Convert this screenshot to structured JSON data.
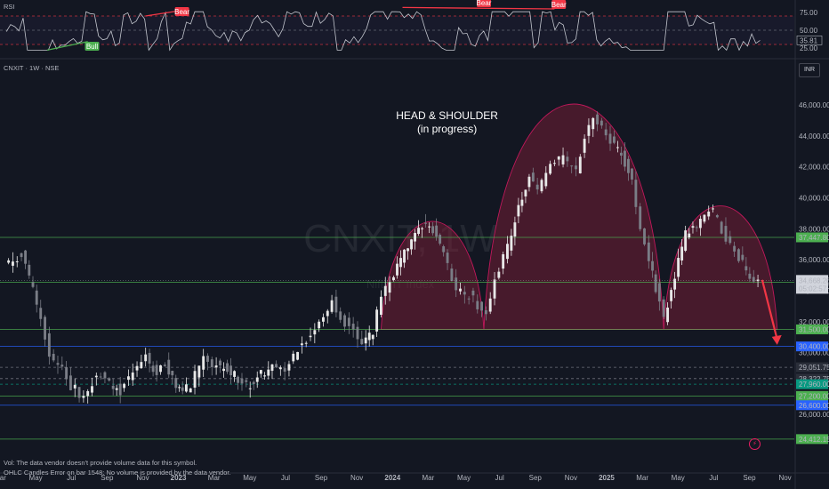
{
  "header": {
    "rsi_label": "RSI",
    "rsi_value": "35.81",
    "symbol_line": "CNXIT · 1W · NSE",
    "currency": "INR",
    "watermark_symbol": "CNXIT, 1W",
    "watermark_name": "Nifty IT Index"
  },
  "annotation": {
    "title": "HEAD & SHOULDER",
    "subtitle": "(in progress)"
  },
  "signals": [
    {
      "name": "bull-badge",
      "label": "Bull",
      "color": "#4caf50"
    },
    {
      "name": "bear-badge-1",
      "label": "Bear",
      "color": "#f23645"
    },
    {
      "name": "bear-badge-2",
      "label": "Bear",
      "color": "#f23645"
    },
    {
      "name": "bear-badge-3",
      "label": "Bear",
      "color": "#f23645"
    }
  ],
  "footer": {
    "line1": "Vol: The data vendor doesn't provide volume data for this symbol.",
    "line2": "OHLC Candles Error on bar 1548: No volume is provided by the data vendor."
  },
  "chart_data": [
    {
      "type": "line",
      "title": "RSI",
      "y_ticks": [
        "75.00",
        "50.00",
        "25.00"
      ],
      "ylim": [
        15,
        85
      ],
      "current_value": 35.81,
      "levels": [
        70,
        50,
        30
      ],
      "x_range": [
        2022.14,
        2025.85
      ]
    },
    {
      "type": "candlestick",
      "title": "CNXIT · 1W · NSE",
      "ylim": [
        23600,
        47500
      ],
      "y_ticks": [
        "46,000.00",
        "44,000.00",
        "42,000.00",
        "40,000.00",
        "38,000.00",
        "36,000.00",
        "34,000.00",
        "32,000.00",
        "30,000.00",
        "28,000.00",
        "26,000.00"
      ],
      "x_ticks": [
        "Mar",
        "May",
        "Jul",
        "Sep",
        "Nov",
        "2023",
        "Mar",
        "May",
        "Jul",
        "Sep",
        "Nov",
        "2024",
        "Mar",
        "May",
        "Jul",
        "Sep",
        "Nov",
        "2025",
        "Mar",
        "May",
        "Jul",
        "Sep",
        "Nov"
      ],
      "x_range": [
        2022.14,
        2025.85
      ],
      "ohlc_path": [
        [
          2022.17,
          35500
        ],
        [
          2022.25,
          36300
        ],
        [
          2022.32,
          33200
        ],
        [
          2022.38,
          30000
        ],
        [
          2022.44,
          28800
        ],
        [
          2022.48,
          27800
        ],
        [
          2022.54,
          27200
        ],
        [
          2022.6,
          28600
        ],
        [
          2022.66,
          28100
        ],
        [
          2022.71,
          27500
        ],
        [
          2022.77,
          28800
        ],
        [
          2022.83,
          29800
        ],
        [
          2022.88,
          28600
        ],
        [
          2022.92,
          29300
        ],
        [
          2022.97,
          28000
        ],
        [
          2023.0,
          27300
        ],
        [
          2023.04,
          28000
        ],
        [
          2023.1,
          29600
        ],
        [
          2023.16,
          29200
        ],
        [
          2023.21,
          28900
        ],
        [
          2023.26,
          28300
        ],
        [
          2023.3,
          27800
        ],
        [
          2023.35,
          28400
        ],
        [
          2023.42,
          29100
        ],
        [
          2023.48,
          28600
        ],
        [
          2023.54,
          30200
        ],
        [
          2023.6,
          31200
        ],
        [
          2023.66,
          32400
        ],
        [
          2023.7,
          33400
        ],
        [
          2023.74,
          32200
        ],
        [
          2023.8,
          31500
        ],
        [
          2023.84,
          30700
        ],
        [
          2023.89,
          31300
        ],
        [
          2023.93,
          33800
        ],
        [
          2023.97,
          34600
        ],
        [
          2024.02,
          36000
        ],
        [
          2024.07,
          37200
        ],
        [
          2024.12,
          38300
        ],
        [
          2024.17,
          37900
        ],
        [
          2024.22,
          36300
        ],
        [
          2024.28,
          34000
        ],
        [
          2024.34,
          33700
        ],
        [
          2024.38,
          33100
        ],
        [
          2024.42,
          32700
        ],
        [
          2024.46,
          34800
        ],
        [
          2024.52,
          36800
        ],
        [
          2024.57,
          39600
        ],
        [
          2024.62,
          41400
        ],
        [
          2024.66,
          40500
        ],
        [
          2024.72,
          42100
        ],
        [
          2024.78,
          42600
        ],
        [
          2024.84,
          41800
        ],
        [
          2024.88,
          44100
        ],
        [
          2024.92,
          45200
        ],
        [
          2024.96,
          44600
        ],
        [
          2025.0,
          43800
        ],
        [
          2025.05,
          42800
        ],
        [
          2025.1,
          41200
        ],
        [
          2025.14,
          37900
        ],
        [
          2025.18,
          35800
        ],
        [
          2025.21,
          34200
        ],
        [
          2025.25,
          32200
        ],
        [
          2025.3,
          34900
        ],
        [
          2025.35,
          37600
        ],
        [
          2025.42,
          38500
        ],
        [
          2025.48,
          39200
        ],
        [
          2025.54,
          37400
        ],
        [
          2025.6,
          36200
        ],
        [
          2025.65,
          35000
        ],
        [
          2025.69,
          34668
        ]
      ],
      "horizontal_levels": [
        {
          "value": 37447.8,
          "label": "37,447.80",
          "color": "#4caf50"
        },
        {
          "value": 34550.0,
          "label": "34,550.00",
          "color": "#4caf50"
        },
        {
          "value": 31500.0,
          "label": "31,500.00",
          "color": "#4caf50"
        },
        {
          "value": 30400.0,
          "label": "30,400.00",
          "color": "#2962ff"
        },
        {
          "value": 29051.75,
          "label": "29,051.75",
          "color": "#787b86"
        },
        {
          "value": 28322.75,
          "label": "28,322.75",
          "color": "#787b86"
        },
        {
          "value": 27960.0,
          "label": "27,960.00",
          "color": "#089981"
        },
        {
          "value": 27200.0,
          "label": "27,200.00",
          "color": "#4caf50"
        },
        {
          "value": 26600.0,
          "label": "26,600.00",
          "color": "#2962ff"
        },
        {
          "value": 24412.15,
          "label": "24,412.15",
          "color": "#4caf50"
        }
      ],
      "last_price": {
        "value": 34668.2,
        "label": "34,668.20",
        "countdown": "05:02:57"
      },
      "pattern_arcs": [
        {
          "name": "left-shoulder",
          "x_start": 2023.92,
          "x_end": 2024.4,
          "base": 31500,
          "peak": 38500
        },
        {
          "name": "head",
          "x_start": 2024.4,
          "x_end": 2025.24,
          "base": 31500,
          "peak": 46100
        },
        {
          "name": "right-shoulder",
          "x_start": 2025.24,
          "x_end": 2025.77,
          "base": 31500,
          "peak": 39500
        }
      ],
      "projection_arrow": {
        "from": [
          2025.7,
          34700
        ],
        "to": [
          2025.77,
          30500
        ],
        "color": "#f23645"
      }
    }
  ]
}
